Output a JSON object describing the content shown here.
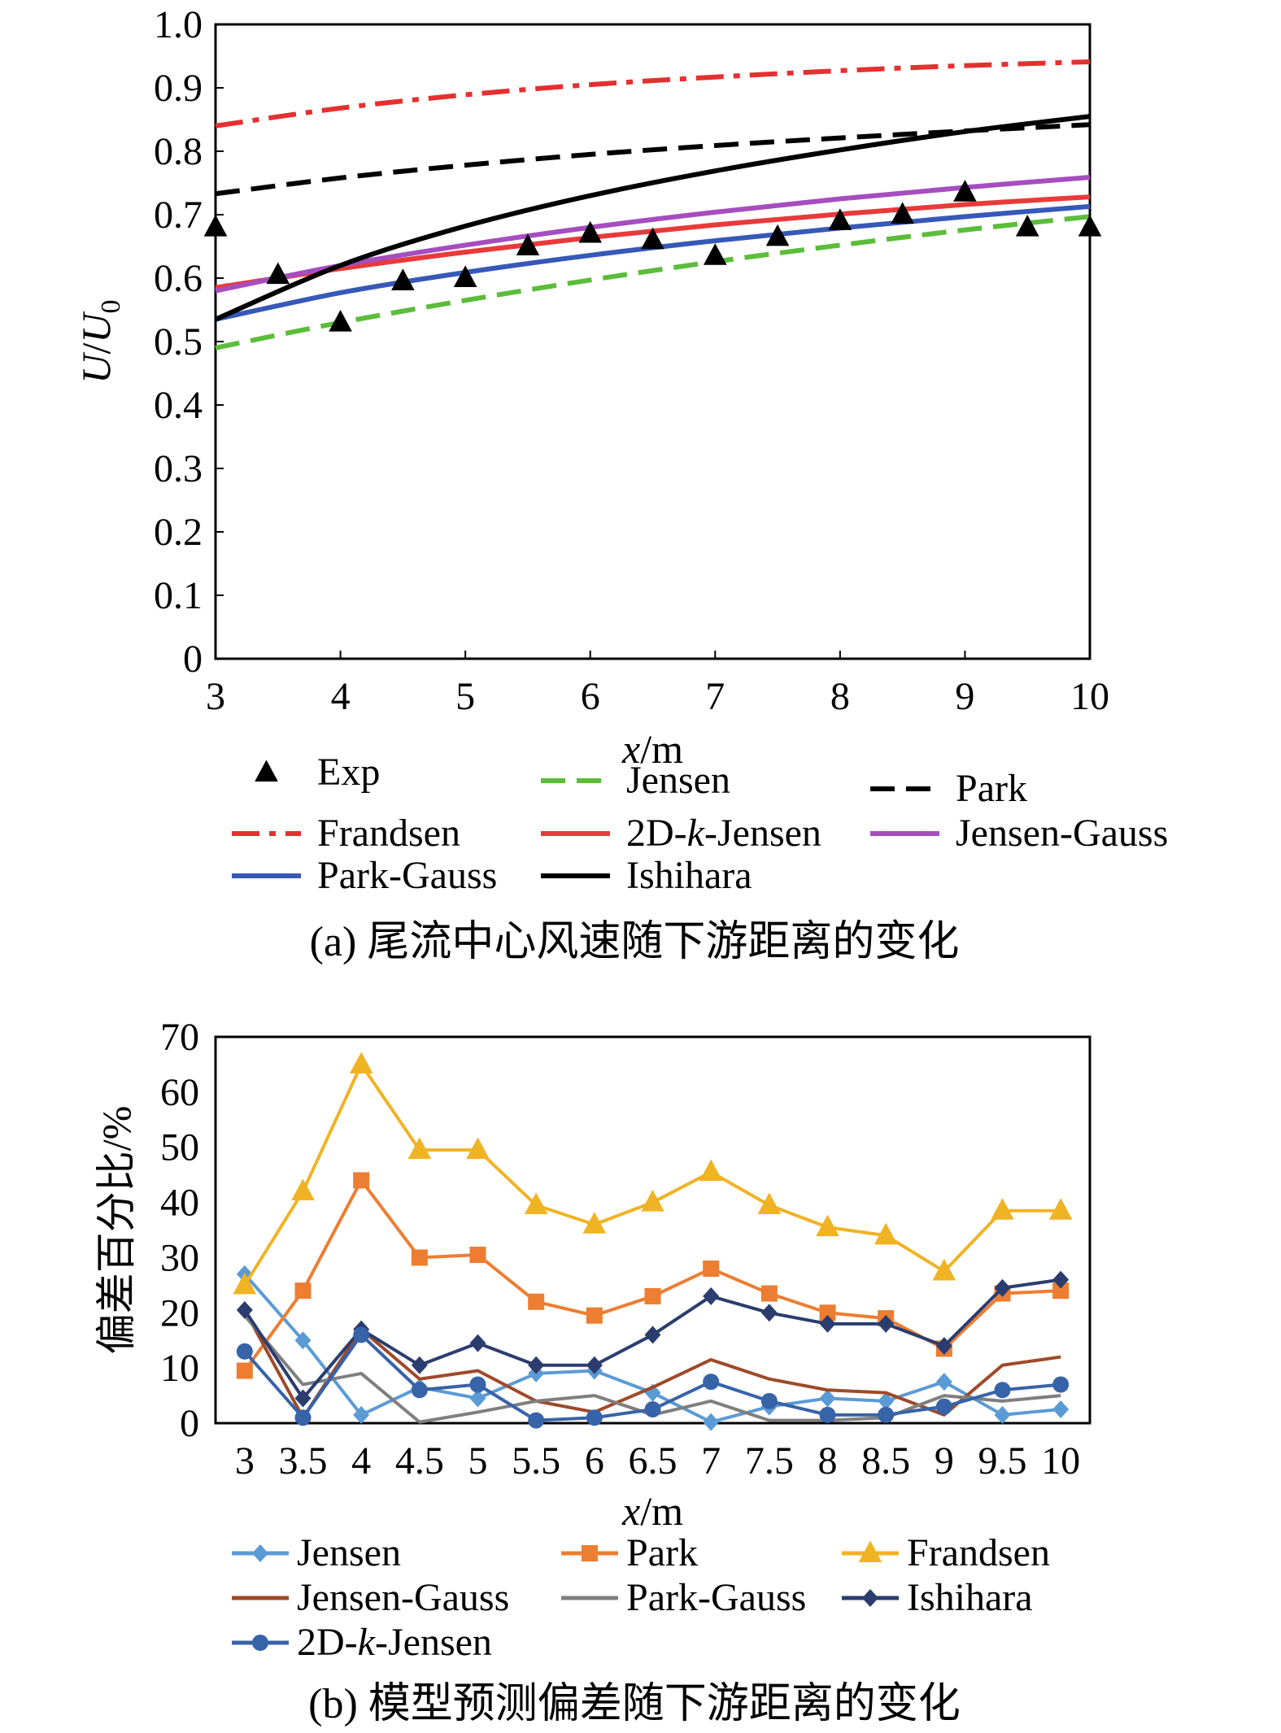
{
  "chart_data": [
    {
      "type": "line",
      "caption": "(a) 尾流中心风速随下游距离的变化",
      "xlabel": "x/m",
      "ylabel": "U/U0",
      "xlim": [
        3,
        10
      ],
      "ylim": [
        0,
        1.0
      ],
      "x_ticks": [
        "3",
        "4",
        "5",
        "6",
        "7",
        "8",
        "9",
        "10"
      ],
      "y_ticks": [
        "0",
        "0.1",
        "0.2",
        "0.3",
        "0.4",
        "0.5",
        "0.6",
        "0.7",
        "0.8",
        "0.9",
        "1.0"
      ],
      "grid": false,
      "legend_position": "bottom",
      "series": [
        {
          "name": "Exp",
          "style": "markers",
          "marker": "triangle",
          "color": "#000000",
          "x": [
            3,
            3.5,
            4,
            4.5,
            5,
            5.5,
            6,
            6.5,
            7,
            7.5,
            8,
            8.5,
            9,
            9.5,
            10
          ],
          "y": [
            0.68,
            0.605,
            0.53,
            0.595,
            0.6,
            0.65,
            0.67,
            0.66,
            0.635,
            0.665,
            0.69,
            0.7,
            0.735,
            0.68,
            0.68
          ]
        },
        {
          "name": "Jensen",
          "style": "dashed",
          "color": "#5bbd3a",
          "x": [
            3,
            4,
            5,
            6,
            7,
            8,
            9,
            10
          ],
          "y": [
            0.49,
            0.53,
            0.565,
            0.597,
            0.626,
            0.652,
            0.676,
            0.697
          ]
        },
        {
          "name": "Park",
          "style": "dashed",
          "color": "#000000",
          "x": [
            3,
            4,
            5,
            6,
            7,
            8,
            9,
            10
          ],
          "y": [
            0.733,
            0.758,
            0.778,
            0.795,
            0.809,
            0.821,
            0.832,
            0.842
          ]
        },
        {
          "name": "Frandsen",
          "style": "dashdot",
          "color": "#e53030",
          "x": [
            3,
            4,
            5,
            6,
            7,
            8,
            9,
            10
          ],
          "y": [
            0.84,
            0.868,
            0.889,
            0.905,
            0.917,
            0.927,
            0.935,
            0.941
          ]
        },
        {
          "name": "2D-k-Jensen",
          "style": "solid",
          "color": "#e83a3a",
          "x": [
            3,
            4,
            5,
            6,
            7,
            8,
            9,
            10
          ],
          "y": [
            0.585,
            0.615,
            0.641,
            0.664,
            0.684,
            0.701,
            0.716,
            0.728
          ]
        },
        {
          "name": "Jensen-Gauss",
          "style": "solid",
          "color": "#a64dbf",
          "x": [
            3,
            4,
            5,
            6,
            7,
            8,
            9,
            10
          ],
          "y": [
            0.58,
            0.62,
            0.652,
            0.68,
            0.704,
            0.725,
            0.743,
            0.759
          ]
        },
        {
          "name": "Park-Gauss",
          "style": "solid",
          "color": "#3659b8",
          "x": [
            3,
            4,
            5,
            6,
            7,
            8,
            9,
            10
          ],
          "y": [
            0.535,
            0.577,
            0.609,
            0.636,
            0.659,
            0.679,
            0.697,
            0.713
          ]
        },
        {
          "name": "Ishihara",
          "style": "solid",
          "color": "#000000",
          "x": [
            3,
            4,
            5,
            6,
            7,
            8,
            9,
            10
          ],
          "y": [
            0.535,
            0.62,
            0.682,
            0.73,
            0.769,
            0.802,
            0.831,
            0.855
          ]
        }
      ]
    },
    {
      "type": "line",
      "caption": "(b) 模型预测偏差随下游距离的变化",
      "xlabel": "x/m",
      "ylabel": "偏差百分比/%",
      "categories": [
        "3",
        "3.5",
        "4",
        "4.5",
        "5",
        "5.5",
        "6",
        "6.5",
        "7",
        "7.5",
        "8",
        "8.5",
        "9",
        "9.5",
        "10"
      ],
      "ylim": [
        0,
        70
      ],
      "y_ticks": [
        "0",
        "10",
        "20",
        "30",
        "40",
        "50",
        "60",
        "70"
      ],
      "grid": false,
      "legend_position": "bottom",
      "series": [
        {
          "name": "Jensen",
          "marker": "diamond",
          "color": "#5b9bd5",
          "values": [
            27,
            15,
            1.5,
            6.5,
            4.5,
            9,
            9.5,
            5.5,
            0.2,
            3,
            4.5,
            4,
            7.5,
            1.5,
            2.5
          ]
        },
        {
          "name": "Park",
          "marker": "square",
          "color": "#ed7d31",
          "values": [
            9.5,
            24,
            44,
            30,
            30.5,
            22,
            19.5,
            23,
            28,
            23.5,
            20,
            19,
            13.5,
            23.5,
            24
          ]
        },
        {
          "name": "Frandsen",
          "marker": "triangle",
          "color": "#f0b323",
          "values": [
            25,
            42,
            65,
            49.5,
            49.5,
            39.5,
            36,
            40,
            45.5,
            39.5,
            35.5,
            34,
            27.5,
            38.5,
            38.5
          ]
        },
        {
          "name": "Jensen-Gauss",
          "marker": "none",
          "color": "#9e4a2a",
          "values": [
            20.5,
            1,
            17,
            8,
            9.5,
            4,
            2,
            6.5,
            11.5,
            8,
            6,
            5.5,
            1.5,
            10.5,
            12
          ]
        },
        {
          "name": "Park-Gauss",
          "marker": "none",
          "color": "#7f7f7f",
          "values": [
            19.5,
            7,
            9,
            0.2,
            2,
            4,
            5,
            1.5,
            4,
            0.5,
            0.5,
            1,
            5,
            4,
            5
          ]
        },
        {
          "name": "Ishihara",
          "marker": "diamond",
          "color": "#2b3d6e",
          "values": [
            20.5,
            4.5,
            17,
            10.5,
            14.5,
            10.5,
            10.5,
            16,
            23,
            20,
            18,
            18,
            14,
            24.5,
            26
          ]
        },
        {
          "name": "2D-k-Jensen",
          "marker": "circle",
          "color": "#3763a8",
          "values": [
            13,
            1,
            16,
            6,
            7,
            0.5,
            1,
            2.5,
            7.5,
            4,
            1.5,
            1.5,
            3,
            6,
            7
          ]
        }
      ]
    }
  ]
}
